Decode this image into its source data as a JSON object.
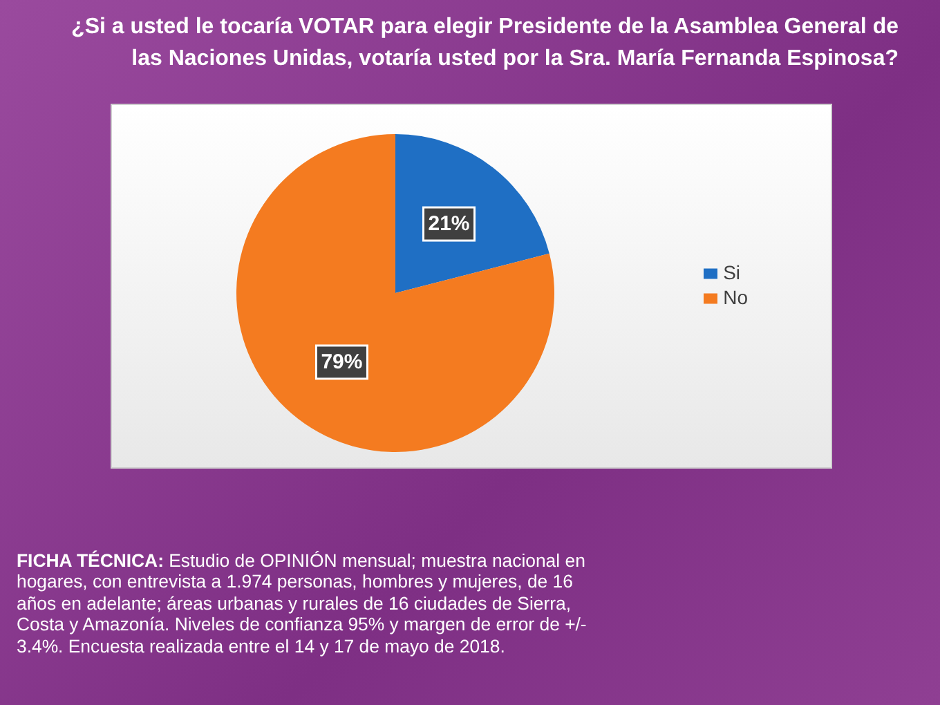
{
  "chart_data": {
    "type": "pie",
    "title": "¿Si a usted le tocaría VOTAR para elegir Presidente de la Asamblea General de las Naciones Unidas, votaría usted por la Sra. María Fernanda Espinosa?",
    "categories": [
      "Si",
      "No"
    ],
    "values": [
      21,
      79
    ],
    "value_labels": [
      "21%",
      "79%"
    ],
    "colors": [
      "#1f6fc4",
      "#f47b20"
    ],
    "legend": "right",
    "annotations": [
      "FICHA TÉCNICA: Estudio de OPINIÓN mensual; muestra nacional en hogares, con entrevista a 1.974 personas, hombres y mujeres, de 16 años en adelante; áreas urbanas y rurales de 16 ciudades de Sierra, Costa y Amazonía. Niveles de confianza 95% y margen de error de +/- 3.4%. Encuesta realizada entre el 14 y 17 de mayo de 2018."
    ]
  }
}
